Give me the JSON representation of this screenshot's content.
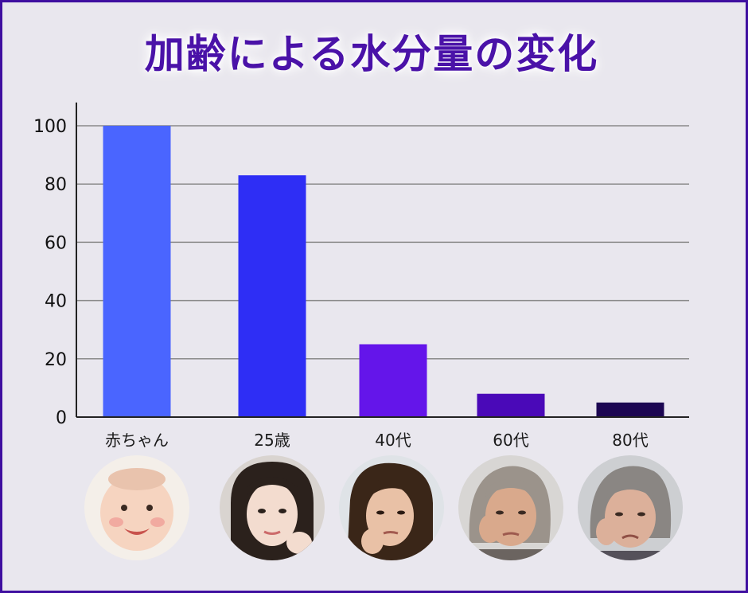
{
  "title": "加齢による水分量の変化",
  "chart_data": {
    "type": "bar",
    "categories": [
      "赤ちゃん",
      "25歳",
      "40代",
      "60代",
      "80代"
    ],
    "values": [
      100,
      83,
      25,
      8,
      5
    ],
    "ylim": [
      0,
      108
    ],
    "yticks": [
      0,
      20,
      40,
      60,
      80,
      100
    ],
    "grid": true,
    "bar_colors": [
      "#4a65ff",
      "#2e2ef5",
      "#6415ea",
      "#4a09b8",
      "#1c0652"
    ]
  },
  "photos": [
    {
      "subject": "baby",
      "icon": "baby-face-icon"
    },
    {
      "subject": "young-woman",
      "icon": "woman-face-icon"
    },
    {
      "subject": "middle-aged-woman",
      "icon": "woman-face-icon"
    },
    {
      "subject": "older-woman",
      "icon": "elderly-woman-face-icon"
    },
    {
      "subject": "elderly-woman",
      "icon": "elderly-woman-face-icon"
    }
  ]
}
